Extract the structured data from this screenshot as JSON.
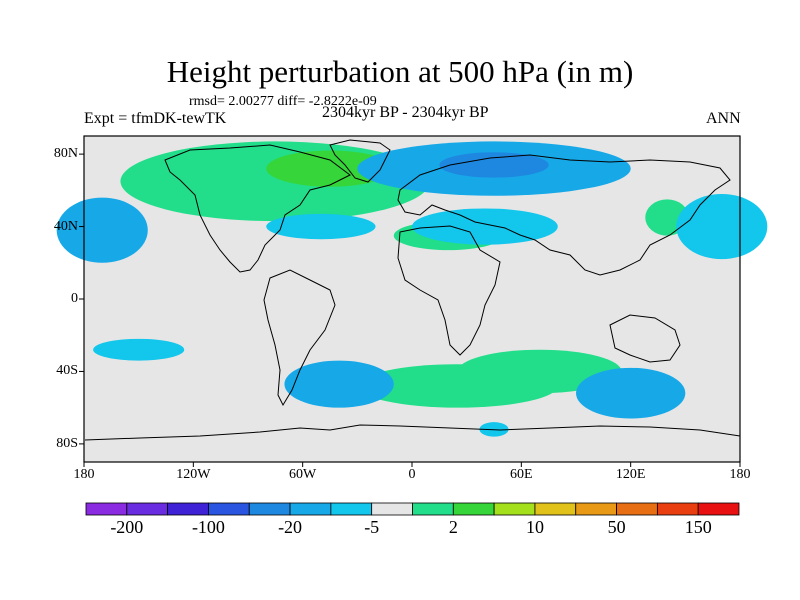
{
  "title": "Height perturbation at 500 hPa (in m)",
  "stats": "rmsd= 2.00277 diff= -2.8222e-09",
  "experiment": "Expt = tfmDK-tewTK",
  "period": "2304kyr BP - 2304kyr BP",
  "season": "ANN",
  "colors": {
    "land_outline": "#000000",
    "neutral": "#e6e6e6"
  },
  "axes": {
    "lat_ticks": [
      "80N",
      "40N",
      "0",
      "40S",
      "80S"
    ],
    "lat_values": [
      80,
      40,
      0,
      -40,
      -80
    ],
    "lon_ticks": [
      "180",
      "120W",
      "60W",
      "0",
      "60E",
      "120E",
      "180"
    ],
    "lon_values": [
      -180,
      -120,
      -60,
      0,
      60,
      120,
      180
    ],
    "lat_range": [
      -90,
      90
    ],
    "lon_range": [
      -180,
      180
    ]
  },
  "colorbar": {
    "labels": [
      "-200",
      "-100",
      "-20",
      "-5",
      "2",
      "10",
      "50",
      "150"
    ],
    "colors": [
      "#8a2be2",
      "#6a2ce0",
      "#3f22d6",
      "#2a55e0",
      "#1e88e0",
      "#17a8e8",
      "#13c6ec",
      "#e6e6e6",
      "#22de8a",
      "#36d63a",
      "#a5e01c",
      "#e0c21a",
      "#e89a16",
      "#e86e14",
      "#e83e10",
      "#e81010"
    ]
  },
  "chart_data": {
    "type": "heatmap",
    "projection": "cylindrical-equidistant",
    "regions": [
      {
        "name": "positive-north-atlantic-greenland",
        "level": 2,
        "lon": -75,
        "lat": 65,
        "w_lon": 85,
        "h_lat": 22
      },
      {
        "name": "positive-greenland-core",
        "level": 3,
        "lon": -45,
        "lat": 72,
        "w_lon": 35,
        "h_lat": 10
      },
      {
        "name": "positive-north-africa",
        "level": 1,
        "lon": 20,
        "lat": 35,
        "w_lon": 30,
        "h_lat": 8
      },
      {
        "name": "positive-east-asia",
        "level": 1,
        "lon": 140,
        "lat": 45,
        "w_lon": 12,
        "h_lat": 10
      },
      {
        "name": "positive-south-atlantic",
        "level": 1,
        "lon": 25,
        "lat": -48,
        "w_lon": 55,
        "h_lat": 12
      },
      {
        "name": "positive-indian-ocean",
        "level": 1,
        "lon": 70,
        "lat": -40,
        "w_lon": 45,
        "h_lat": 12
      },
      {
        "name": "negative-arctic",
        "level": -2,
        "lon": 45,
        "lat": 72,
        "w_lon": 75,
        "h_lat": 15
      },
      {
        "name": "negative-arctic-core",
        "level": -3,
        "lon": 45,
        "lat": 74,
        "w_lon": 30,
        "h_lat": 7
      },
      {
        "name": "negative-north-pacific",
        "level": -2,
        "lon": -170,
        "lat": 38,
        "w_lon": 25,
        "h_lat": 18
      },
      {
        "name": "negative-nw-pacific",
        "level": -1,
        "lon": 170,
        "lat": 40,
        "w_lon": 25,
        "h_lat": 18
      },
      {
        "name": "negative-mid-atlantic",
        "level": -1,
        "lon": -50,
        "lat": 40,
        "w_lon": 30,
        "h_lat": 7
      },
      {
        "name": "negative-western-europe",
        "level": -1,
        "lon": 40,
        "lat": 40,
        "w_lon": 40,
        "h_lat": 10
      },
      {
        "name": "negative-south-pacific",
        "level": -1,
        "lon": -150,
        "lat": -28,
        "w_lon": 25,
        "h_lat": 6
      },
      {
        "name": "negative-south-atlantic",
        "level": -2,
        "lon": -40,
        "lat": -47,
        "w_lon": 30,
        "h_lat": 13
      },
      {
        "name": "negative-southern-indian",
        "level": -2,
        "lon": 120,
        "lat": -52,
        "w_lon": 30,
        "h_lat": 14
      },
      {
        "name": "negative-antarctic-small",
        "level": -1,
        "lon": 45,
        "lat": -72,
        "w_lon": 8,
        "h_lat": 4
      }
    ]
  }
}
